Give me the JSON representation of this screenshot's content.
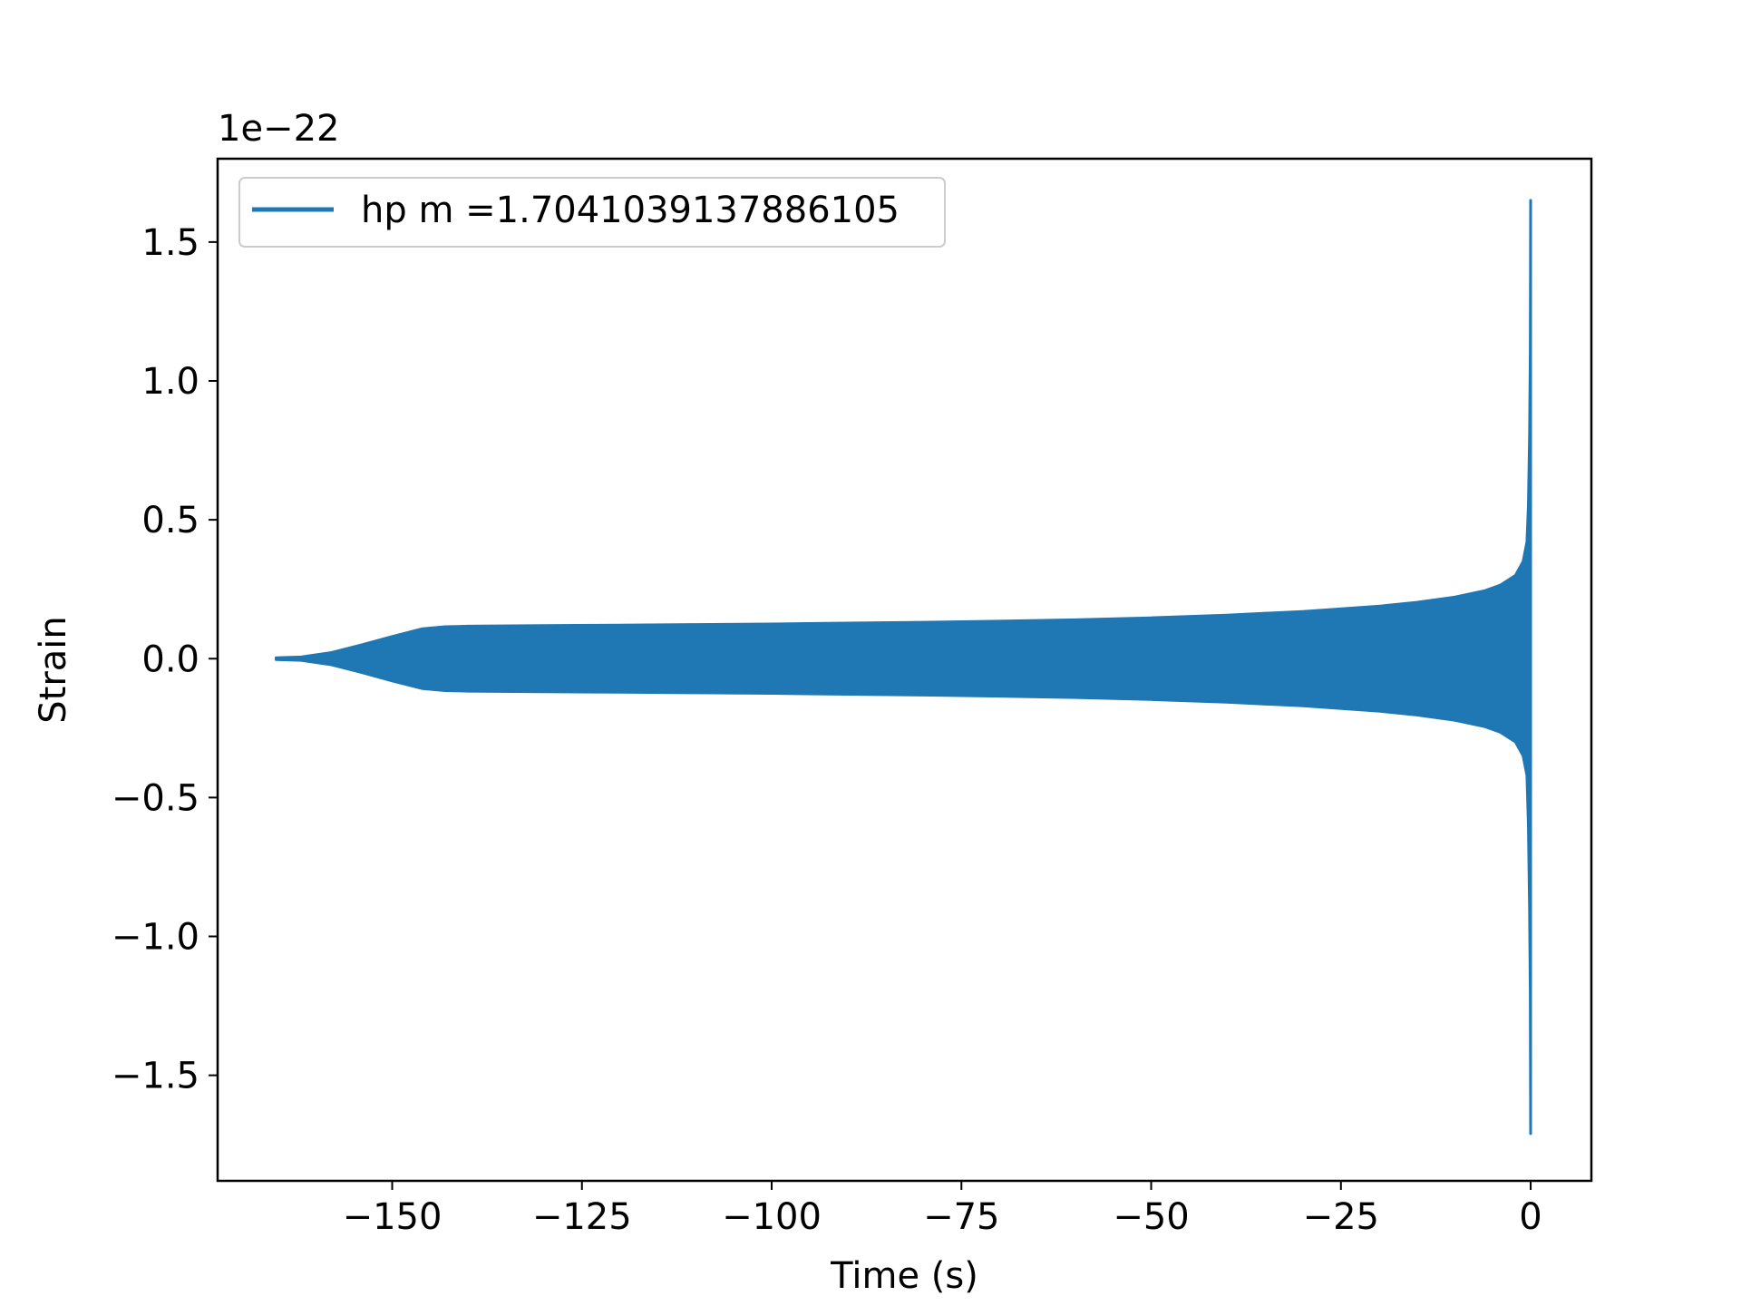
{
  "chart_data": {
    "type": "line",
    "title": "",
    "xlabel": "Time (s)",
    "ylabel": "Strain",
    "y_offset_label": "1e−22",
    "xlim": [
      -173,
      8
    ],
    "ylim": [
      -1.88,
      1.8
    ],
    "x_ticks": [
      -150,
      -125,
      -100,
      -75,
      -50,
      -25,
      0
    ],
    "x_tick_labels": [
      "−150",
      "−125",
      "−100",
      "−75",
      "−50",
      "−25",
      "0"
    ],
    "y_ticks": [
      1.5,
      1.0,
      0.5,
      0.0,
      -0.5,
      -1.0,
      -1.5
    ],
    "y_tick_labels": [
      "1.5",
      "1.0",
      "0.5",
      "0.0",
      "−0.5",
      "−1.0",
      "−1.5"
    ],
    "grid": false,
    "legend_position": "top-left",
    "series": [
      {
        "name": "hp m =1.7041039137886105",
        "color": "#1f77b4",
        "envelope_x": [
          -165.3,
          -162,
          -158,
          -154,
          -150,
          -146,
          -143,
          -140,
          -130,
          -120,
          -110,
          -100,
          -90,
          -80,
          -70,
          -60,
          -50,
          -40,
          -30,
          -20,
          -15,
          -10,
          -6,
          -4,
          -2,
          -1,
          -0.5,
          -0.3,
          -0.15,
          -0.05,
          0.0
        ],
        "envelope_upper": [
          0.003,
          0.006,
          0.022,
          0.05,
          0.08,
          0.108,
          0.115,
          0.117,
          0.119,
          0.121,
          0.123,
          0.125,
          0.128,
          0.131,
          0.135,
          0.14,
          0.147,
          0.157,
          0.17,
          0.189,
          0.203,
          0.222,
          0.245,
          0.265,
          0.3,
          0.35,
          0.42,
          0.55,
          0.8,
          1.1,
          1.65
        ],
        "envelope_lower": [
          -0.003,
          -0.006,
          -0.022,
          -0.05,
          -0.08,
          -0.108,
          -0.115,
          -0.117,
          -0.119,
          -0.121,
          -0.123,
          -0.125,
          -0.128,
          -0.131,
          -0.135,
          -0.14,
          -0.147,
          -0.157,
          -0.17,
          -0.189,
          -0.203,
          -0.222,
          -0.245,
          -0.265,
          -0.3,
          -0.35,
          -0.42,
          -0.6,
          -0.9,
          -1.2,
          -1.71
        ]
      }
    ]
  }
}
